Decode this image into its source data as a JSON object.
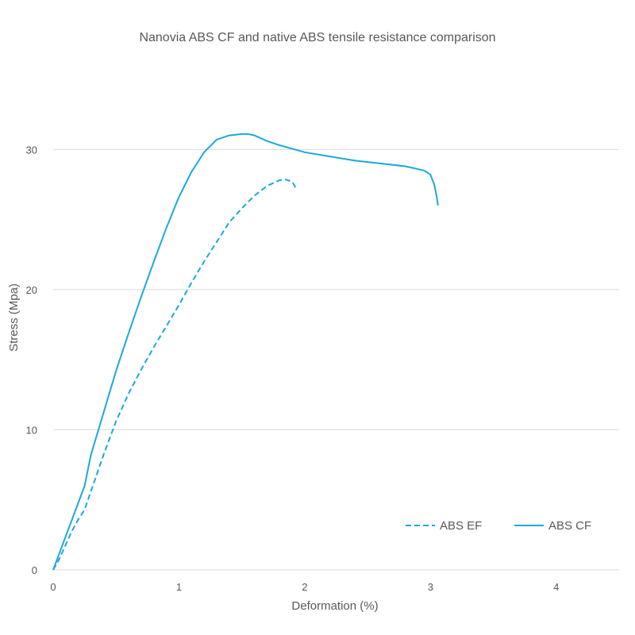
{
  "chart_data": {
    "type": "line",
    "title": "Nanovia ABS CF and native ABS tensile resistance comparison",
    "xlabel": "Deformation (%)",
    "ylabel": "Stress (Mpa)",
    "xlim": [
      0,
      4.5
    ],
    "ylim": [
      0,
      35
    ],
    "xticks": [
      0,
      1,
      2,
      3,
      4
    ],
    "yticks": [
      0,
      10,
      20,
      30
    ],
    "grid": "horizontal",
    "legend_position": "bottom-right",
    "series": [
      {
        "name": "ABS EF",
        "style": "dashed",
        "color": "#1BA9DD",
        "x": [
          0,
          0.05,
          0.1,
          0.15,
          0.2,
          0.25,
          0.3,
          0.4,
          0.5,
          0.6,
          0.7,
          0.8,
          0.9,
          1.0,
          1.1,
          1.2,
          1.3,
          1.4,
          1.5,
          1.6,
          1.7,
          1.8,
          1.85,
          1.9,
          1.92,
          1.93
        ],
        "y": [
          0,
          0.8,
          1.8,
          2.8,
          3.6,
          4.3,
          5.6,
          8.2,
          10.6,
          12.6,
          14.3,
          15.9,
          17.4,
          18.9,
          20.5,
          22.0,
          23.4,
          24.8,
          25.8,
          26.7,
          27.4,
          27.8,
          27.85,
          27.7,
          27.4,
          27.1
        ]
      },
      {
        "name": "ABS CF",
        "style": "solid",
        "color": "#1BA9DD",
        "x": [
          0,
          0.05,
          0.1,
          0.15,
          0.2,
          0.25,
          0.3,
          0.4,
          0.5,
          0.6,
          0.7,
          0.8,
          0.9,
          1.0,
          1.1,
          1.2,
          1.3,
          1.4,
          1.5,
          1.55,
          1.6,
          1.7,
          1.8,
          2.0,
          2.2,
          2.4,
          2.6,
          2.8,
          2.95,
          3.0,
          3.03,
          3.05,
          3.06
        ],
        "y": [
          0,
          1.2,
          2.4,
          3.6,
          4.8,
          6.0,
          8.2,
          11.2,
          14.2,
          16.9,
          19.5,
          22.0,
          24.4,
          26.6,
          28.4,
          29.8,
          30.7,
          31.0,
          31.1,
          31.1,
          31.0,
          30.6,
          30.3,
          29.8,
          29.5,
          29.2,
          29.0,
          28.8,
          28.5,
          28.2,
          27.5,
          26.6,
          26.0
        ]
      }
    ]
  }
}
